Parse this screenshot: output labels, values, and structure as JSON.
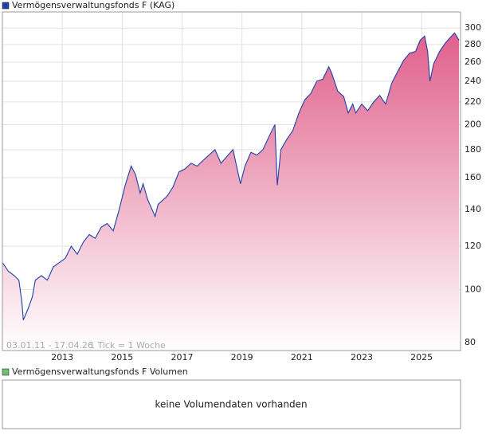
{
  "chart_data": {
    "type": "area",
    "log_scale": true,
    "grid": true,
    "series": [
      {
        "name": "Vermögensverwaltungsfonds F (KAG)",
        "color": "#1f3fa8",
        "fill_top": "#e0608c",
        "fill_bottom": "#ffffff",
        "values": [
          112,
          108,
          106,
          104,
          95,
          88,
          92,
          97,
          104,
          106,
          104,
          110,
          112,
          114,
          120,
          116,
          122,
          126,
          124,
          130,
          132,
          128,
          140,
          155,
          168,
          162,
          150,
          156,
          146,
          136,
          143,
          148,
          154,
          164,
          166,
          170,
          168,
          172,
          176,
          180,
          170,
          175,
          180,
          156,
          168,
          178,
          176,
          180,
          190,
          200,
          155,
          180,
          188,
          195,
          210,
          222,
          228,
          240,
          242,
          255,
          248,
          230,
          225,
          210,
          218,
          210,
          218,
          212,
          220,
          226,
          218,
          238,
          250,
          262,
          270,
          272,
          285,
          290,
          272,
          240,
          258,
          272,
          282,
          288,
          294,
          285
        ]
      }
    ],
    "x": [
      2011.0,
      2011.2,
      2011.4,
      2011.55,
      2011.65,
      2011.7,
      2011.85,
      2012.0,
      2012.1,
      2012.3,
      2012.5,
      2012.7,
      2012.9,
      2013.1,
      2013.3,
      2013.5,
      2013.7,
      2013.9,
      2014.1,
      2014.3,
      2014.5,
      2014.7,
      2014.9,
      2015.1,
      2015.3,
      2015.45,
      2015.6,
      2015.7,
      2015.85,
      2016.1,
      2016.2,
      2016.5,
      2016.7,
      2016.9,
      2017.1,
      2017.3,
      2017.5,
      2017.7,
      2017.9,
      2018.1,
      2018.3,
      2018.5,
      2018.7,
      2018.95,
      2019.1,
      2019.3,
      2019.5,
      2019.7,
      2019.9,
      2020.1,
      2020.18,
      2020.3,
      2020.5,
      2020.7,
      2020.9,
      2021.1,
      2021.3,
      2021.5,
      2021.7,
      2021.9,
      2022.0,
      2022.2,
      2022.4,
      2022.55,
      2022.7,
      2022.8,
      2023.0,
      2023.2,
      2023.4,
      2023.6,
      2023.8,
      2024.0,
      2024.2,
      2024.4,
      2024.6,
      2024.8,
      2024.95,
      2025.1,
      2025.2,
      2025.28,
      2025.4,
      2025.6,
      2025.8,
      2025.95,
      2026.1,
      2026.25
    ],
    "xlim": [
      2011.0,
      2026.3
    ],
    "xticks": [
      2013,
      2015,
      2017,
      2019,
      2021,
      2023,
      2025
    ],
    "ylim": [
      77.4,
      321
    ],
    "yticks": [
      80,
      100,
      120,
      140,
      160,
      180,
      200,
      220,
      240,
      260,
      280,
      300
    ],
    "date_range": "03.01.11 - 17.04.26",
    "tick_note": "1 Tick = 1 Woche"
  },
  "volume_panel": {
    "title": "Vermögensverwaltungsfonds F Volumen",
    "message": "keine Volumendaten vorhanden"
  }
}
